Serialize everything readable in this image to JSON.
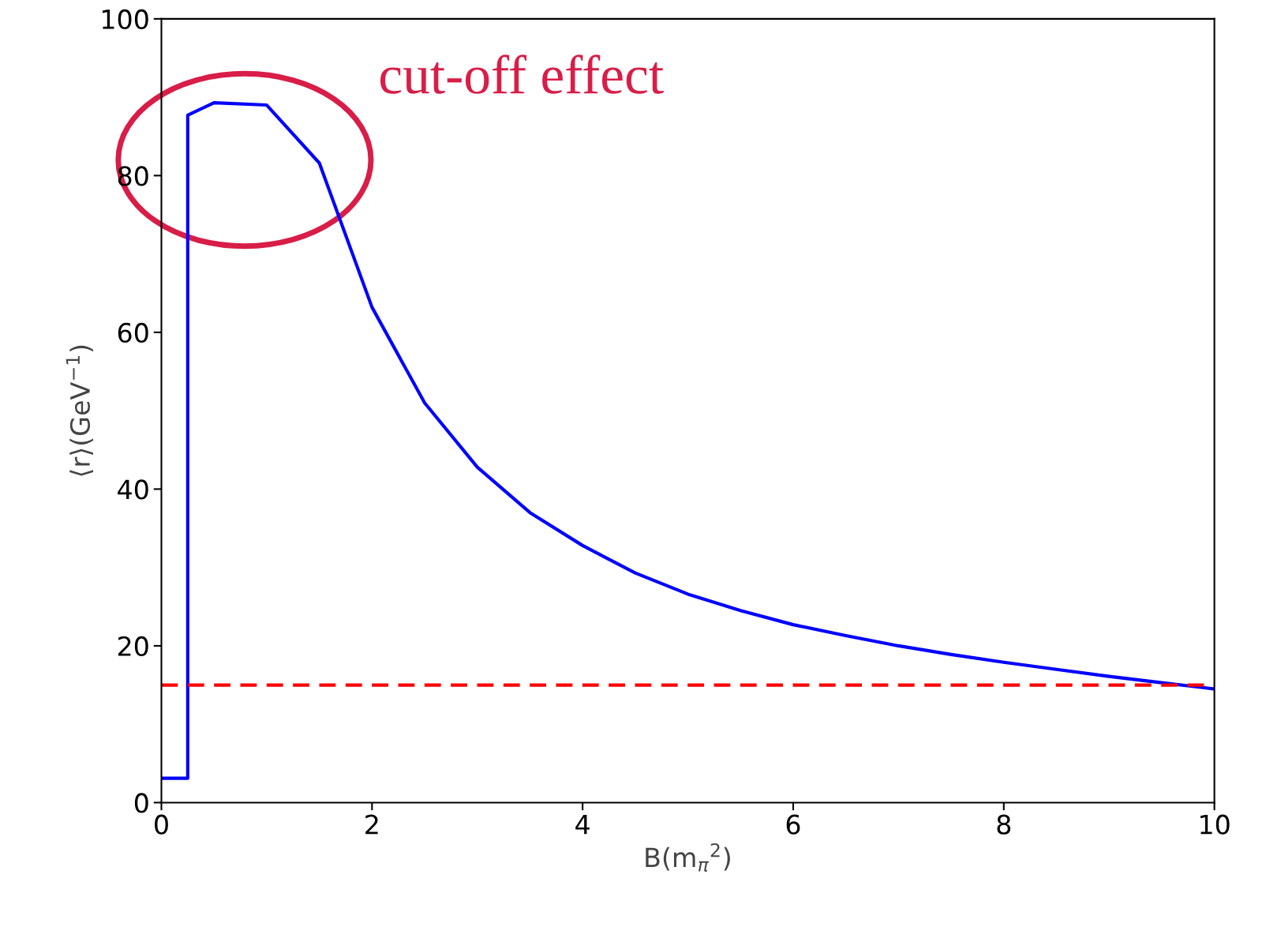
{
  "chart_data": {
    "type": "line",
    "xlabel": "B(m$_{π}$$^{2}$)",
    "ylabel": "⟨r⟩(GeV$^{−1}$)",
    "annotations": [
      "cut-off effect"
    ],
    "x": [
      0,
      0.25,
      0.25,
      0.5,
      1.0,
      1.5,
      2.0,
      2.5,
      3.0,
      3.5,
      4.0,
      4.5,
      5.0,
      5.5,
      6.0,
      6.5,
      7.0,
      7.5,
      8.0,
      8.5,
      9.0,
      9.5,
      10
    ],
    "series": [
      {
        "color": "#0000ff",
        "values": [
          3.1,
          3.1,
          87.7,
          89.3,
          89.0,
          81.6,
          63.2,
          51.0,
          42.8,
          37.0,
          32.8,
          29.3,
          26.6,
          24.5,
          22.7,
          21.3,
          20.0,
          18.9,
          17.9,
          17.0,
          16.1,
          15.3,
          14.5
        ]
      }
    ],
    "ref_lines": [
      {
        "axis": "y",
        "value": 15,
        "color": "#ff0000",
        "line_style": "dashed"
      }
    ],
    "xlim": [
      0,
      10
    ],
    "ylim": [
      0,
      100
    ],
    "xticks": [
      0,
      2,
      4,
      6,
      8,
      10
    ],
    "yticks": [
      0,
      20,
      40,
      60,
      80,
      100
    ],
    "grid": false,
    "legend": false,
    "marker": "none",
    "line_style": "solid"
  }
}
